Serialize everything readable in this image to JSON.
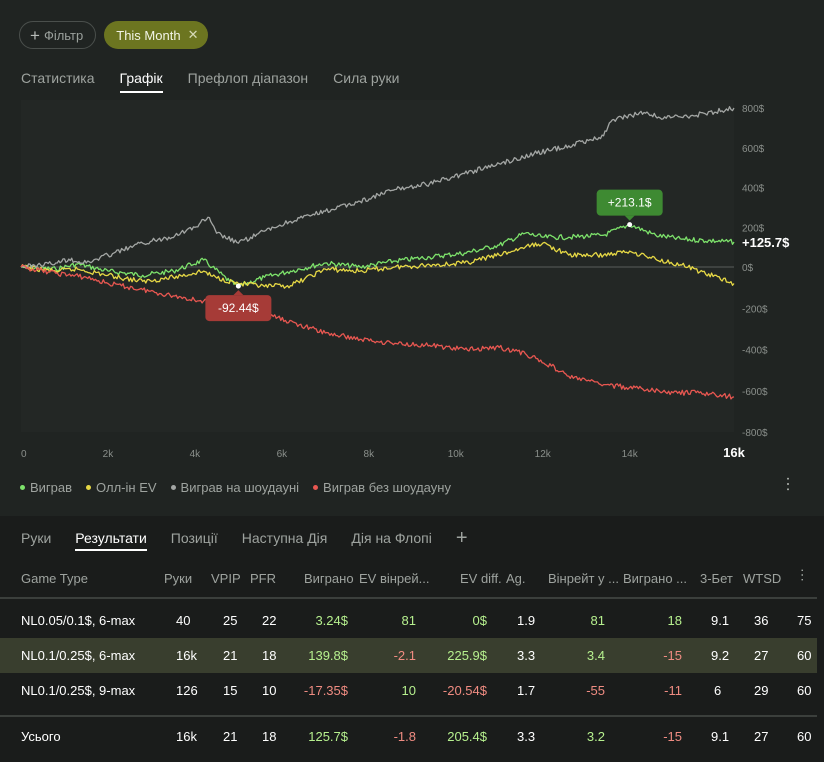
{
  "filters": {
    "add_label": "Фільтр",
    "active_label": "This Month"
  },
  "top_tabs": [
    {
      "label": "Статистика",
      "active": false
    },
    {
      "label": "Графік",
      "active": true
    },
    {
      "label": "Префлоп діапазон",
      "active": false
    },
    {
      "label": "Сила руки",
      "active": false
    }
  ],
  "chart_data": {
    "type": "line",
    "xlabel": "",
    "ylabel": "",
    "x_ticks": [
      "0",
      "2k",
      "4k",
      "6k",
      "8k",
      "10k",
      "12k",
      "14k",
      "16k"
    ],
    "y_ticks": [
      "800$",
      "600$",
      "400$",
      "200$",
      "0$",
      "-200$",
      "-400$",
      "-600$",
      "-800$"
    ],
    "xlim": [
      0,
      16400
    ],
    "ylim": [
      -800,
      800
    ],
    "series": [
      {
        "name": "Виграв",
        "color": "#7de26b",
        "x": [
          0,
          800,
          1300,
          2000,
          2800,
          3500,
          4200,
          4400,
          4800,
          5000,
          5600,
          6200,
          7000,
          7800,
          8600,
          9400,
          10200,
          11000,
          11600,
          12000,
          12600,
          13400,
          14000,
          14600,
          15200,
          16400
        ],
        "y": [
          0,
          -10,
          15,
          -20,
          -40,
          -20,
          35,
          0,
          -70,
          -92.44,
          -50,
          -20,
          20,
          0,
          30,
          50,
          70,
          110,
          170,
          150,
          150,
          160,
          213.1,
          160,
          140,
          125.7
        ]
      },
      {
        "name": "Олл-ін EV",
        "color": "#e6d845",
        "x": [
          0,
          800,
          1300,
          2000,
          2800,
          3500,
          4200,
          4400,
          5000,
          5600,
          6200,
          7000,
          7800,
          8600,
          9400,
          10200,
          11000,
          11600,
          12000,
          12600,
          13400,
          14000,
          14600,
          15200,
          16400
        ],
        "y": [
          0,
          -20,
          -10,
          -40,
          -70,
          -50,
          -20,
          -45,
          -80,
          -95,
          -90,
          -10,
          -20,
          0,
          10,
          20,
          60,
          100,
          120,
          60,
          60,
          80,
          40,
          10,
          -80
        ]
      },
      {
        "name": "Виграв на шоудауні",
        "color": "#a3a6a4",
        "x": [
          0,
          800,
          1100,
          1500,
          2000,
          2800,
          3400,
          4000,
          4300,
          4500,
          5000,
          5600,
          6200,
          7000,
          7800,
          8600,
          9400,
          10200,
          11000,
          11800,
          12600,
          13400,
          13600,
          14400,
          14700,
          15400,
          16400
        ],
        "y": [
          0,
          20,
          40,
          20,
          60,
          120,
          150,
          200,
          250,
          170,
          120,
          180,
          230,
          280,
          330,
          390,
          420,
          470,
          520,
          570,
          610,
          660,
          740,
          780,
          750,
          760,
          800
        ]
      },
      {
        "name": "Виграв без шоудауну",
        "color": "#e85751",
        "x": [
          0,
          800,
          1500,
          2000,
          2800,
          3500,
          4200,
          5000,
          5800,
          6400,
          7000,
          7800,
          8600,
          9400,
          10200,
          11000,
          11600,
          12200,
          12600,
          13400,
          14200,
          15000,
          15600,
          16400
        ],
        "y": [
          0,
          -30,
          -50,
          -80,
          -110,
          -140,
          -165,
          -180,
          -240,
          -280,
          -320,
          -350,
          -370,
          -380,
          -400,
          -390,
          -420,
          -480,
          -530,
          -570,
          -590,
          -610,
          -610,
          -630
        ]
      }
    ],
    "annotations": [
      {
        "text": "+213.1$",
        "series": "Виграв",
        "x": 14000,
        "y": 213.1,
        "color": "#3e8a32"
      },
      {
        "text": "-92.44$",
        "series": "Виграв",
        "x": 5000,
        "y": -92.44,
        "color": "#a63b37"
      }
    ],
    "end_label": "+125.7$",
    "grid": false
  },
  "legend": [
    {
      "label": "Виграв",
      "color": "#7de26b"
    },
    {
      "label": "Олл-ін EV",
      "color": "#e6d845"
    },
    {
      "label": "Виграв на шоудауні",
      "color": "#a3a6a4"
    },
    {
      "label": "Виграв без шоудауну",
      "color": "#e85751"
    }
  ],
  "bottom_tabs": [
    {
      "label": "Руки",
      "active": false
    },
    {
      "label": "Результати",
      "active": true
    },
    {
      "label": "Позиції",
      "active": false
    },
    {
      "label": "Наступна Дія",
      "active": false
    },
    {
      "label": "Дія на Флопі",
      "active": false
    }
  ],
  "bottom_add_label": "+",
  "table": {
    "headers": [
      "Game Type",
      "Руки",
      "VPIP",
      "PFR",
      "Виграно",
      "EV вінрей...",
      "EV diff.",
      "Ag.",
      "Вінрейт у ...",
      "Виграно ...",
      "3-Бет",
      "WTSD",
      ""
    ],
    "rows": [
      {
        "cells": [
          "NL0.05/0.1$, 6-max",
          "40",
          "25",
          "22",
          "3.24$",
          "81",
          "0$",
          "1.9",
          "81",
          "18",
          "9.1",
          "36",
          "75"
        ],
        "selected": false
      },
      {
        "cells": [
          "NL0.1/0.25$, 6-max",
          "16k",
          "21",
          "18",
          "139.8$",
          "-2.1",
          "225.9$",
          "3.3",
          "3.4",
          "-15",
          "9.2",
          "27",
          "60"
        ],
        "selected": true
      },
      {
        "cells": [
          "NL0.1/0.25$, 9-max",
          "126",
          "15",
          "10",
          "-17.35$",
          "10",
          "-20.54$",
          "1.7",
          "-55",
          "-11",
          "6",
          "29",
          "60"
        ],
        "selected": false
      }
    ],
    "total": {
      "cells": [
        "Усього",
        "16k",
        "21",
        "18",
        "125.7$",
        "-1.8",
        "205.4$",
        "3.3",
        "3.2",
        "-15",
        "9.1",
        "27",
        "60"
      ]
    }
  }
}
